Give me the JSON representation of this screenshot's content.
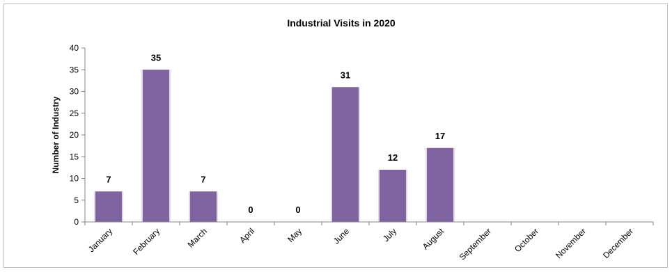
{
  "chart_data": {
    "type": "bar",
    "title": "Industrial Visits in 2020",
    "xlabel": "",
    "ylabel": "Number of Industry",
    "ylim": [
      0,
      40
    ],
    "yticks": [
      0,
      5,
      10,
      15,
      20,
      25,
      30,
      35,
      40
    ],
    "categories": [
      "January",
      "February",
      "March",
      "April",
      "May",
      "June",
      "July",
      "August",
      "September",
      "October",
      "November",
      "December"
    ],
    "values": [
      7,
      35,
      7,
      0,
      0,
      31,
      12,
      17,
      null,
      null,
      null,
      null
    ],
    "data_labels": [
      "7",
      "35",
      "7",
      "0",
      "0",
      "31",
      "12",
      "17",
      "",
      "",
      "",
      ""
    ],
    "bar_color": "#8064a2",
    "grid": false,
    "legend": "none"
  }
}
